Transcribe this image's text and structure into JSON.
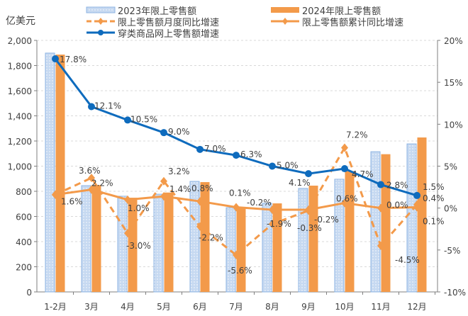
{
  "chart_data": {
    "type": "bar+line",
    "title": "",
    "ylabel_left": "亿美元",
    "categories": [
      "1-2月",
      "3月",
      "4月",
      "5月",
      "6月",
      "7月",
      "8月",
      "9月",
      "10月",
      "11月",
      "12月"
    ],
    "y_left": {
      "range": [
        0,
        2000
      ],
      "ticks": [
        "0",
        "200",
        "400",
        "600",
        "800",
        "1,000",
        "1,200",
        "1,400",
        "1,600",
        "1,800",
        "2,000"
      ]
    },
    "y_right": {
      "range": [
        -10,
        20
      ],
      "ticks": [
        "-10%",
        "-5%",
        "0%",
        "5%",
        "10%",
        "15%",
        "20%"
      ]
    },
    "grid": true,
    "legend_position": "top",
    "series": [
      {
        "name": "2023年限上零售额",
        "type": "bar",
        "axis": "left",
        "color": "#c6d9f1",
        "values": [
          1899,
          845,
          761,
          777,
          879,
          670,
          705,
          823,
          896,
          1115,
          1177
        ]
      },
      {
        "name": "2024年限上零售额",
        "type": "bar",
        "axis": "left",
        "color": "#f39a4a",
        "values": [
          1887,
          850,
          749,
          790,
          873,
          665,
          704,
          845,
          960,
          1095,
          1228
        ]
      },
      {
        "name": "限上零售额月度同比增速",
        "type": "line-dashed",
        "axis": "right",
        "color": "#f39a4a",
        "values": [
          1.6,
          3.6,
          -3.0,
          3.2,
          -2.2,
          -5.6,
          -1.9,
          -0.3,
          7.2,
          -4.5,
          0.4
        ],
        "labels": [
          "",
          "3.6%",
          "-3.0%",
          "3.2%",
          "-2.2%",
          "-5.6%",
          "-1.9%",
          "-0.3%",
          "7.2%",
          "-4.5%",
          "0.4%"
        ]
      },
      {
        "name": "限上零售额累计同比增速",
        "type": "line",
        "axis": "right",
        "color": "#f39a4a",
        "values": [
          1.6,
          2.2,
          1.0,
          1.4,
          0.8,
          0.1,
          -0.2,
          -0.2,
          0.6,
          0.0,
          0.1
        ],
        "labels": [
          "1.6%",
          "2.2%",
          "1.0%",
          "1.4%",
          "0.8%",
          "0.1%",
          "-0.2%",
          "-0.2%",
          "0.6%",
          "0.0%",
          "0.1%"
        ]
      },
      {
        "name": "穿类商品网上零售额增速",
        "type": "line",
        "axis": "right",
        "color": "#0e6bbd",
        "values": [
          17.8,
          12.1,
          10.5,
          9.0,
          7.0,
          6.3,
          5.0,
          4.1,
          4.7,
          2.8,
          1.5
        ],
        "labels": [
          "17.8%",
          "12.1%",
          "10.5%",
          "9.0%",
          "7.0%",
          "6.3%",
          "5.0%",
          "4.1%",
          "4.7%",
          "2.8%",
          "1.5%"
        ]
      }
    ]
  }
}
